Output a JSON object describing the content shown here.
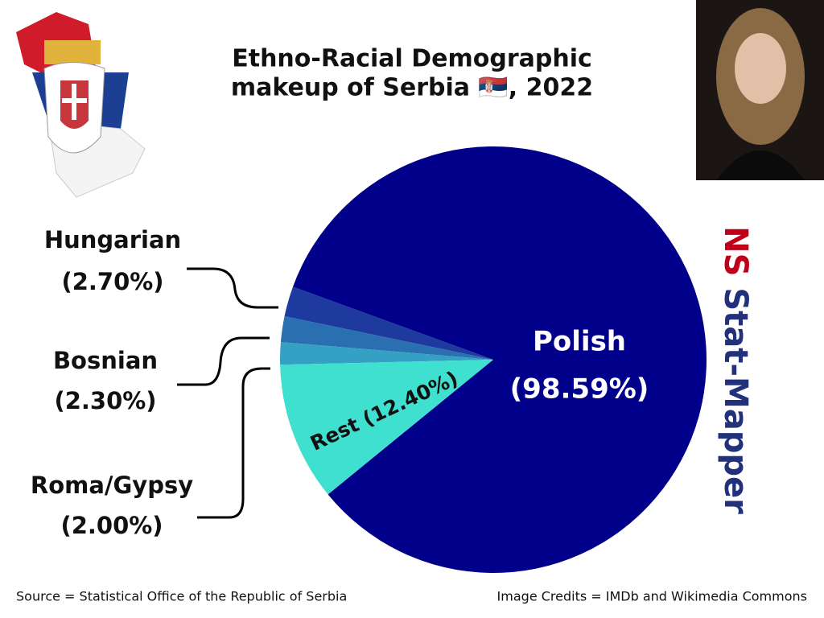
{
  "chart_data": {
    "type": "pie",
    "title_lines": [
      "Ethno-Racial Demographic",
      "makeup of Serbia 🇷🇸, 2022"
    ],
    "categories": [
      "Hungarian",
      "Bosnian",
      "Roma/Gypsy",
      "Rest",
      "Polish"
    ],
    "values": [
      2.7,
      2.3,
      2.0,
      12.4,
      98.59
    ],
    "value_labels": [
      "(2.70%)",
      "(2.30%)",
      "(2.00%)",
      "(12.40%)",
      "(98.59%)"
    ],
    "colors": [
      "#1f3a9e",
      "#2a6fb0",
      "#34a0c4",
      "#40e0d0",
      "#00008b"
    ],
    "source": "Source = Statistical Office of the Republic of Serbia",
    "credits": "Image Credits = IMDb and Wikimedia Commons",
    "watermark": [
      "NS",
      "Stat-Mapper"
    ]
  }
}
